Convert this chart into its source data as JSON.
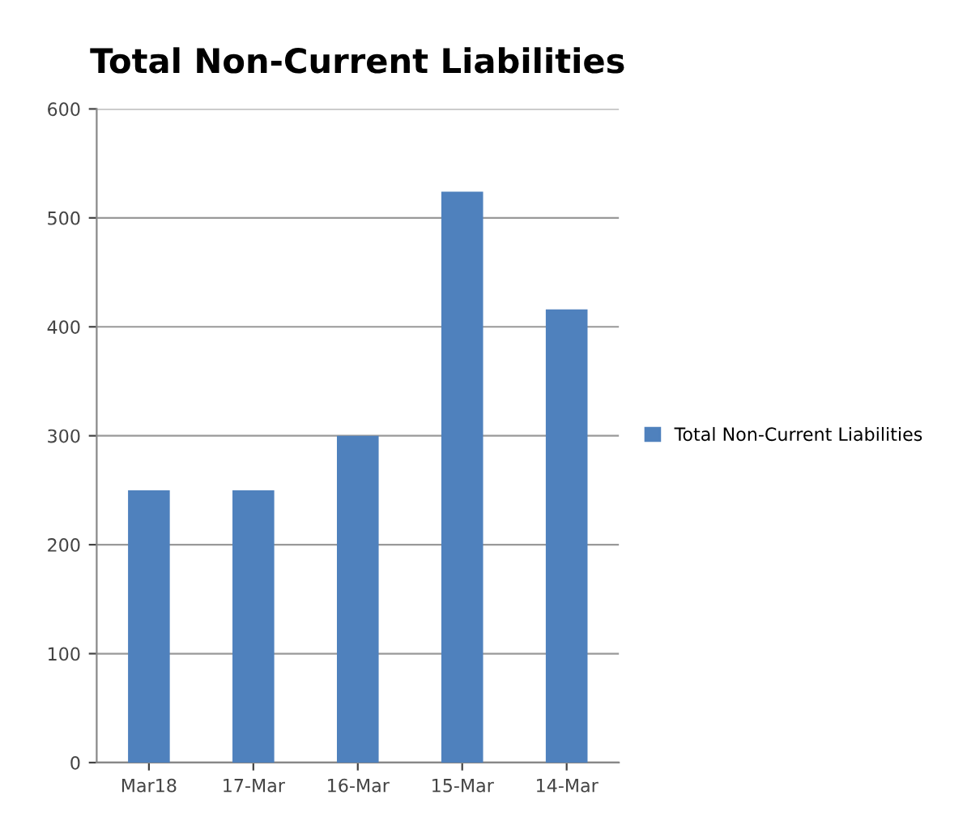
{
  "chart_data": {
    "type": "bar",
    "title": "Total Non-Current Liabilities",
    "categories": [
      "Mar18",
      "17-Mar",
      "16-Mar",
      "15-Mar",
      "14-Mar"
    ],
    "series": [
      {
        "name": "Total Non-Current Liabilities",
        "color": "#4f81bd",
        "values": [
          250,
          250,
          300,
          524,
          416
        ]
      }
    ],
    "ylim": [
      0,
      600
    ],
    "yticks": [
      0,
      100,
      200,
      300,
      400,
      500,
      600
    ],
    "grid": "y",
    "legend": "right"
  }
}
